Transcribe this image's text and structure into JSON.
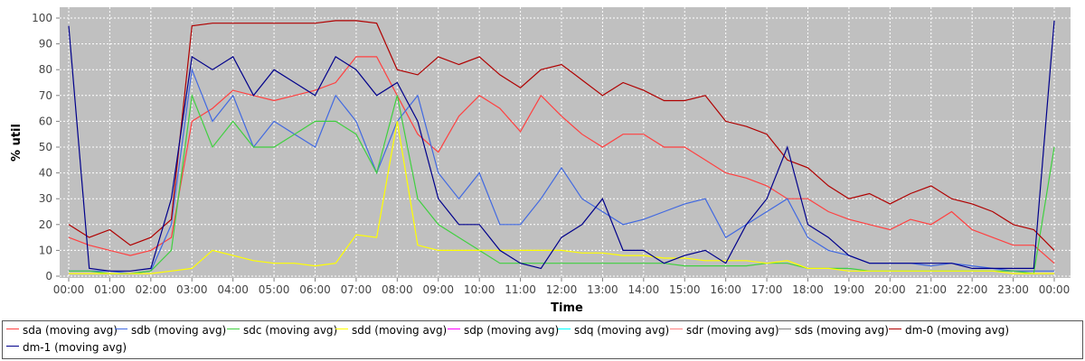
{
  "chart_data": {
    "type": "line",
    "xlabel": "Time",
    "ylabel": "% util",
    "ylim": [
      0,
      100
    ],
    "yticks": [
      0,
      10,
      20,
      30,
      40,
      50,
      60,
      70,
      80,
      90,
      100
    ],
    "xticks": [
      "00:00",
      "01:00",
      "02:00",
      "03:00",
      "04:00",
      "05:00",
      "06:00",
      "07:00",
      "08:00",
      "09:00",
      "10:00",
      "11:00",
      "12:00",
      "13:00",
      "14:00",
      "15:00",
      "16:00",
      "17:00",
      "18:00",
      "19:00",
      "20:00",
      "21:00",
      "22:00",
      "23:00",
      "00:00"
    ],
    "grid": true,
    "legend_position": "bottom",
    "x_hours": [
      0,
      0.5,
      1,
      1.5,
      2,
      2.5,
      3,
      3.5,
      4,
      4.5,
      5,
      5.5,
      6,
      6.5,
      7,
      7.5,
      8,
      8.5,
      9,
      9.5,
      10,
      10.5,
      11,
      11.5,
      12,
      12.5,
      13,
      13.5,
      14,
      14.5,
      15,
      15.5,
      16,
      16.5,
      17,
      17.5,
      18,
      18.5,
      19,
      19.5,
      20,
      20.5,
      21,
      21.5,
      22,
      22.5,
      23,
      23.5,
      24
    ],
    "series": [
      {
        "name": "sda (moving avg)",
        "color": "#ff4040",
        "values": [
          15,
          12,
          10,
          8,
          10,
          15,
          60,
          65,
          72,
          70,
          68,
          70,
          72,
          75,
          85,
          85,
          70,
          55,
          48,
          62,
          70,
          65,
          56,
          70,
          62,
          55,
          50,
          55,
          55,
          50,
          50,
          45,
          40,
          38,
          35,
          30,
          30,
          25,
          22,
          20,
          18,
          22,
          20,
          25,
          18,
          15,
          12,
          12,
          5
        ]
      },
      {
        "name": "sdb (moving avg)",
        "color": "#4169e1",
        "values": [
          2,
          2,
          2,
          1,
          2,
          20,
          80,
          60,
          70,
          50,
          60,
          55,
          50,
          70,
          60,
          40,
          60,
          70,
          40,
          30,
          40,
          20,
          20,
          30,
          42,
          30,
          25,
          20,
          22,
          25,
          28,
          30,
          15,
          20,
          25,
          30,
          15,
          10,
          8,
          5,
          5,
          5,
          4,
          5,
          4,
          3,
          2,
          2,
          2
        ]
      },
      {
        "name": "sdc (moving avg)",
        "color": "#40d040",
        "values": [
          2,
          2,
          1,
          1,
          2,
          10,
          70,
          50,
          60,
          50,
          50,
          55,
          60,
          60,
          55,
          40,
          70,
          30,
          20,
          15,
          10,
          5,
          5,
          5,
          5,
          5,
          5,
          5,
          5,
          5,
          4,
          4,
          4,
          4,
          5,
          5,
          3,
          3,
          3,
          2,
          2,
          2,
          2,
          2,
          2,
          2,
          2,
          1,
          50
        ]
      },
      {
        "name": "sdd (moving avg)",
        "color": "#ffff00",
        "values": [
          1,
          1,
          1,
          1,
          1,
          2,
          3,
          10,
          8,
          6,
          5,
          5,
          4,
          5,
          16,
          15,
          60,
          12,
          10,
          10,
          10,
          10,
          10,
          10,
          10,
          9,
          9,
          8,
          8,
          7,
          7,
          6,
          6,
          6,
          5,
          6,
          3,
          3,
          2,
          2,
          2,
          2,
          2,
          2,
          2,
          2,
          1,
          1,
          1
        ]
      },
      {
        "name": "sdp (moving avg)",
        "color": "#ff00ff",
        "values": []
      },
      {
        "name": "sdq (moving avg)",
        "color": "#00ffff",
        "values": []
      },
      {
        "name": "sdr (moving avg)",
        "color": "#ff8080",
        "values": []
      },
      {
        "name": "sds (moving avg)",
        "color": "#808080",
        "values": []
      },
      {
        "name": "dm-0 (moving avg)",
        "color": "#b00000",
        "values": [
          20,
          15,
          18,
          12,
          15,
          22,
          97,
          98,
          98,
          98,
          98,
          98,
          98,
          99,
          99,
          98,
          80,
          78,
          85,
          82,
          85,
          78,
          73,
          80,
          82,
          76,
          70,
          75,
          72,
          68,
          68,
          70,
          60,
          58,
          55,
          45,
          42,
          35,
          30,
          32,
          28,
          32,
          35,
          30,
          28,
          25,
          20,
          18,
          10
        ]
      },
      {
        "name": "dm-1 (moving avg)",
        "color": "#00008b",
        "values": [
          97,
          3,
          2,
          2,
          3,
          30,
          85,
          80,
          85,
          70,
          80,
          75,
          70,
          85,
          80,
          70,
          75,
          60,
          30,
          20,
          20,
          10,
          5,
          3,
          15,
          20,
          30,
          10,
          10,
          5,
          8,
          10,
          5,
          20,
          30,
          50,
          20,
          15,
          8,
          5,
          5,
          5,
          5,
          5,
          3,
          3,
          3,
          3,
          99
        ]
      }
    ]
  },
  "legend": {
    "items": [
      {
        "label": "sda (moving avg)",
        "color": "#ff4040"
      },
      {
        "label": "sdb (moving avg)",
        "color": "#4169e1"
      },
      {
        "label": "sdc (moving avg)",
        "color": "#40d040"
      },
      {
        "label": "sdd (moving avg)",
        "color": "#ffff00"
      },
      {
        "label": "sdp (moving avg)",
        "color": "#ff00ff"
      },
      {
        "label": "sdq (moving avg)",
        "color": "#00ffff"
      },
      {
        "label": "sdr (moving avg)",
        "color": "#ff8080"
      },
      {
        "label": "sds (moving avg)",
        "color": "#808080"
      },
      {
        "label": "dm-0 (moving avg)",
        "color": "#b00000"
      },
      {
        "label": "dm-1 (moving avg)",
        "color": "#00008b"
      }
    ]
  },
  "colors": {
    "plot_background": "#c0c0c0",
    "gridline": "#ffffff"
  }
}
